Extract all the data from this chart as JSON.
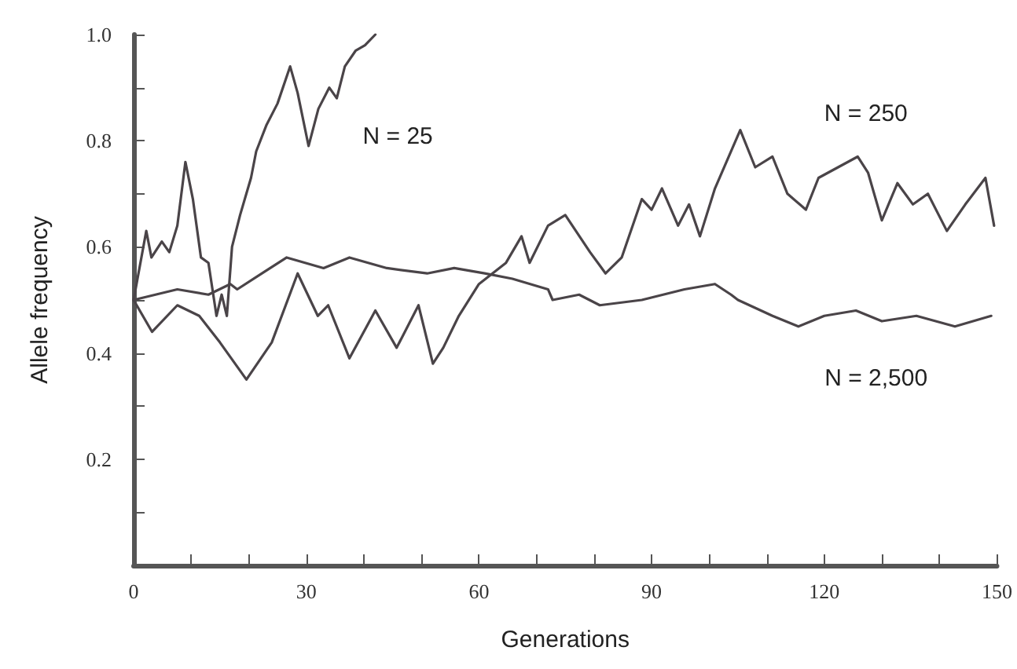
{
  "chart_data": {
    "type": "line",
    "xlabel": "Generations",
    "ylabel": "Allele frequency",
    "xlim": [
      0,
      150
    ],
    "ylim": [
      0,
      1
    ],
    "xticks": [
      0,
      {
        "value": 10,
        "label": null
      },
      {
        "value": 20,
        "label": null
      },
      30,
      {
        "value": 40,
        "label": null
      },
      {
        "value": 50,
        "label": null
      },
      60,
      {
        "value": 70,
        "label": null
      },
      {
        "value": 80,
        "label": null
      },
      90,
      {
        "value": 100,
        "label": null
      },
      {
        "value": 110,
        "label": null
      },
      120,
      {
        "value": 130,
        "label": null
      },
      {
        "value": 140,
        "label": null
      },
      150
    ],
    "yticks": [
      {
        "value": 0,
        "label": null
      },
      {
        "value": 0.1,
        "label": null
      },
      0.2,
      {
        "value": 0.3,
        "label": null
      },
      0.4,
      {
        "value": 0.5,
        "label": null
      },
      0.6,
      {
        "value": 0.7,
        "label": null
      },
      0.8,
      {
        "value": 0.9,
        "label": null
      },
      {
        "value": 1,
        "label": "1.0"
      }
    ],
    "grid": false,
    "marker": "none",
    "line_style": "solid",
    "series": [
      {
        "name": "N = 25",
        "color": "#4a4448",
        "x": [
          0,
          2.2,
          3.1,
          4.9,
          6.2,
          7.6,
          9,
          10.3,
          11.7,
          13,
          14.4,
          15.3,
          16.2,
          17.1,
          18.5,
          20.4,
          21.3,
          23.1,
          25,
          27.2,
          28.5,
          30.4,
          32.1,
          34,
          35.3,
          36.7,
          38.6,
          40.2,
          42
        ],
        "values": [
          0.5,
          0.63,
          0.58,
          0.61,
          0.59,
          0.64,
          0.76,
          0.69,
          0.58,
          0.57,
          0.47,
          0.51,
          0.47,
          0.6,
          0.66,
          0.73,
          0.78,
          0.83,
          0.87,
          0.94,
          0.89,
          0.79,
          0.86,
          0.9,
          0.88,
          0.94,
          0.97,
          0.98,
          1.0
        ]
      },
      {
        "name": "N = 250",
        "color": "#4a4448",
        "x": [
          0,
          3.2,
          7.6,
          11.4,
          15,
          19.6,
          24,
          28.5,
          32,
          33.8,
          37.5,
          42,
          45.7,
          49.5,
          52,
          53.8,
          56.5,
          60,
          64.7,
          67.4,
          68.8,
          72,
          75,
          79.3,
          82,
          84.8,
          88.3,
          90,
          91.8,
          94.6,
          96.5,
          98.4,
          101,
          104.6,
          105.4,
          108,
          111,
          113.6,
          116.8,
          119,
          125.8,
          127.6,
          130,
          132.7,
          135.4,
          138,
          141.3,
          144.5,
          148,
          149.5
        ],
        "values": [
          0.5,
          0.44,
          0.49,
          0.47,
          0.42,
          0.35,
          0.42,
          0.55,
          0.47,
          0.49,
          0.39,
          0.48,
          0.41,
          0.49,
          0.38,
          0.41,
          0.47,
          0.53,
          0.57,
          0.62,
          0.57,
          0.64,
          0.66,
          0.59,
          0.55,
          0.58,
          0.69,
          0.67,
          0.71,
          0.64,
          0.68,
          0.62,
          0.71,
          0.8,
          0.82,
          0.75,
          0.77,
          0.7,
          0.67,
          0.73,
          0.77,
          0.74,
          0.65,
          0.72,
          0.68,
          0.7,
          0.63,
          0.68,
          0.73,
          0.64
        ]
      },
      {
        "name": "N = 2,500",
        "color": "#4a4448",
        "x": [
          0,
          7.6,
          13,
          16.8,
          18,
          22.3,
          26.6,
          33,
          37.5,
          44,
          51,
          55.7,
          61,
          65.8,
          72,
          72.8,
          77.4,
          81,
          88.3,
          95.7,
          101,
          103.8,
          105,
          111,
          115.5,
          120,
          125.5,
          130,
          136,
          142.7,
          149
        ],
        "values": [
          0.5,
          0.52,
          0.51,
          0.53,
          0.52,
          0.55,
          0.58,
          0.56,
          0.58,
          0.56,
          0.55,
          0.56,
          0.55,
          0.54,
          0.52,
          0.5,
          0.51,
          0.49,
          0.5,
          0.52,
          0.53,
          0.51,
          0.5,
          0.47,
          0.45,
          0.47,
          0.48,
          0.46,
          0.47,
          0.45,
          0.47
        ]
      }
    ]
  }
}
